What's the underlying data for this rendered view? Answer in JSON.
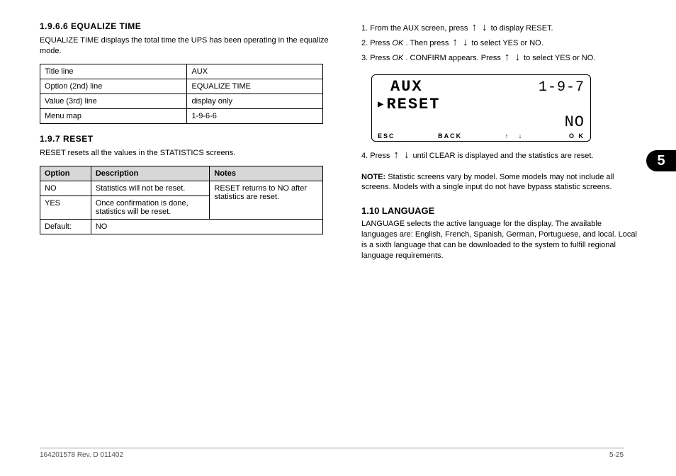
{
  "sideTab": "5",
  "left": {
    "heading1": "1.9.6.6  EQUALIZE TIME",
    "para1": "EQUALIZE TIME displays the total time the UPS has been operating in the equalize mode.",
    "kvTable": [
      {
        "k": "Title line",
        "v": "AUX"
      },
      {
        "k": "Option (2nd) line",
        "v": "EQUALIZE TIME"
      },
      {
        "k": "Value (3rd) line",
        "v": "display only"
      },
      {
        "k": "Menu map",
        "v": "1-9-6-6"
      }
    ],
    "heading2": "1.9.7  RESET",
    "para2": "RESET resets all the values in the STATISTICS screens.",
    "optHeaders": [
      "Option",
      "Description",
      "Notes"
    ],
    "optRows": [
      {
        "opt": "NO",
        "desc": "Statistics will not be reset.",
        "note": "RESET returns to NO after statistics are reset."
      },
      {
        "opt": "YES",
        "desc": "Once confirmation is done, statistics will be reset.",
        "note": ""
      },
      {
        "opt": "Default:",
        "desc": "NO",
        "note": ""
      }
    ]
  },
  "right": {
    "instructions": [
      {
        "pre": "1. From the AUX screen, press ",
        "post": " to display RESET."
      },
      {
        "pre": "2. Press ",
        "mid": "OK",
        "post": " . Then press ",
        "post2": " to select YES or NO."
      },
      {
        "pre": "3. Press ",
        "mid": "OK",
        "post2": ". CONFIRM appears. Press ",
        "post3": " to select YES or NO."
      }
    ],
    "lcd": {
      "title": "AUX",
      "menuId": "1-9-7",
      "line2": "RESET",
      "value": "NO",
      "softkeys": {
        "esc": "ESC",
        "back": "BACK",
        "mid": "↑   ↓",
        "ok": "O K"
      }
    },
    "afterInstr": [
      {
        "pre": "4. Press ",
        "post": " until CLEAR is displayed and the statistics are reset."
      }
    ],
    "noteLabel": "NOTE:",
    "noteText": " Statistic screens vary by model. Some models may not include all screens. Models with a single input do not have bypass statistic screens.",
    "sectHeading": "1.10  LANGUAGE",
    "sectPara": "LANGUAGE selects the active language for the display. The available languages are: English, French, Spanish, German, Portuguese, and local. Local is a sixth language that can be downloaded to the system to fulfill regional language requirements."
  },
  "footer": {
    "left": "164201578  Rev. D  011402",
    "right": "5-25"
  },
  "glyphs": {
    "up": "↑",
    "down": "↓",
    "tri": "▶"
  }
}
